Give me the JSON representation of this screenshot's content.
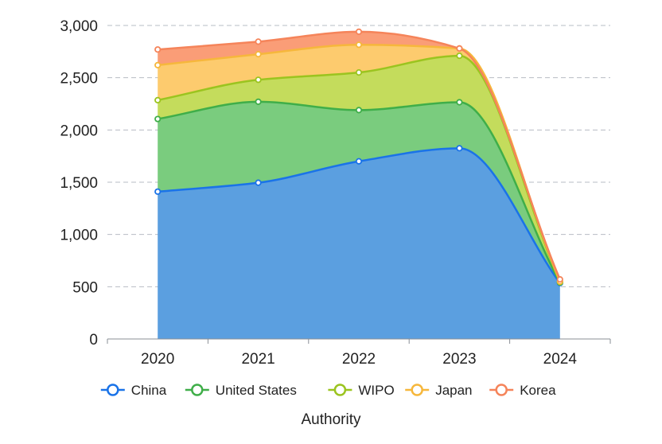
{
  "chart_data": {
    "type": "area",
    "stacked": true,
    "smooth": true,
    "categories": [
      "2020",
      "2021",
      "2022",
      "2023",
      "2024"
    ],
    "series": [
      {
        "name": "China",
        "color": "#1a73e8",
        "fill": "#5b9fe0",
        "values": [
          1410,
          1495,
          1700,
          1825,
          535
        ]
      },
      {
        "name": "United States",
        "color": "#3fae49",
        "fill": "#7acc7e",
        "values": [
          695,
          775,
          490,
          440,
          5
        ]
      },
      {
        "name": "WIPO",
        "color": "#9bc41f",
        "fill": "#c4dc5c",
        "values": [
          180,
          210,
          360,
          445,
          5
        ]
      },
      {
        "name": "Japan",
        "color": "#f6b73c",
        "fill": "#fdcb6e",
        "values": [
          335,
          245,
          265,
          70,
          5
        ]
      },
      {
        "name": "Korea",
        "color": "#f5845a",
        "fill": "#fa9d77",
        "values": [
          150,
          120,
          125,
          0,
          20
        ]
      }
    ],
    "xlabel": "Authority",
    "ylabel": "",
    "ylim": [
      0,
      3000
    ],
    "yticks": [
      0,
      500,
      1000,
      1500,
      2000,
      2500,
      3000
    ],
    "ytick_labels": [
      "0",
      "500",
      "1,000",
      "1,500",
      "2,000",
      "2,500",
      "3,000"
    ],
    "grid": true,
    "legend_position": "bottom"
  }
}
